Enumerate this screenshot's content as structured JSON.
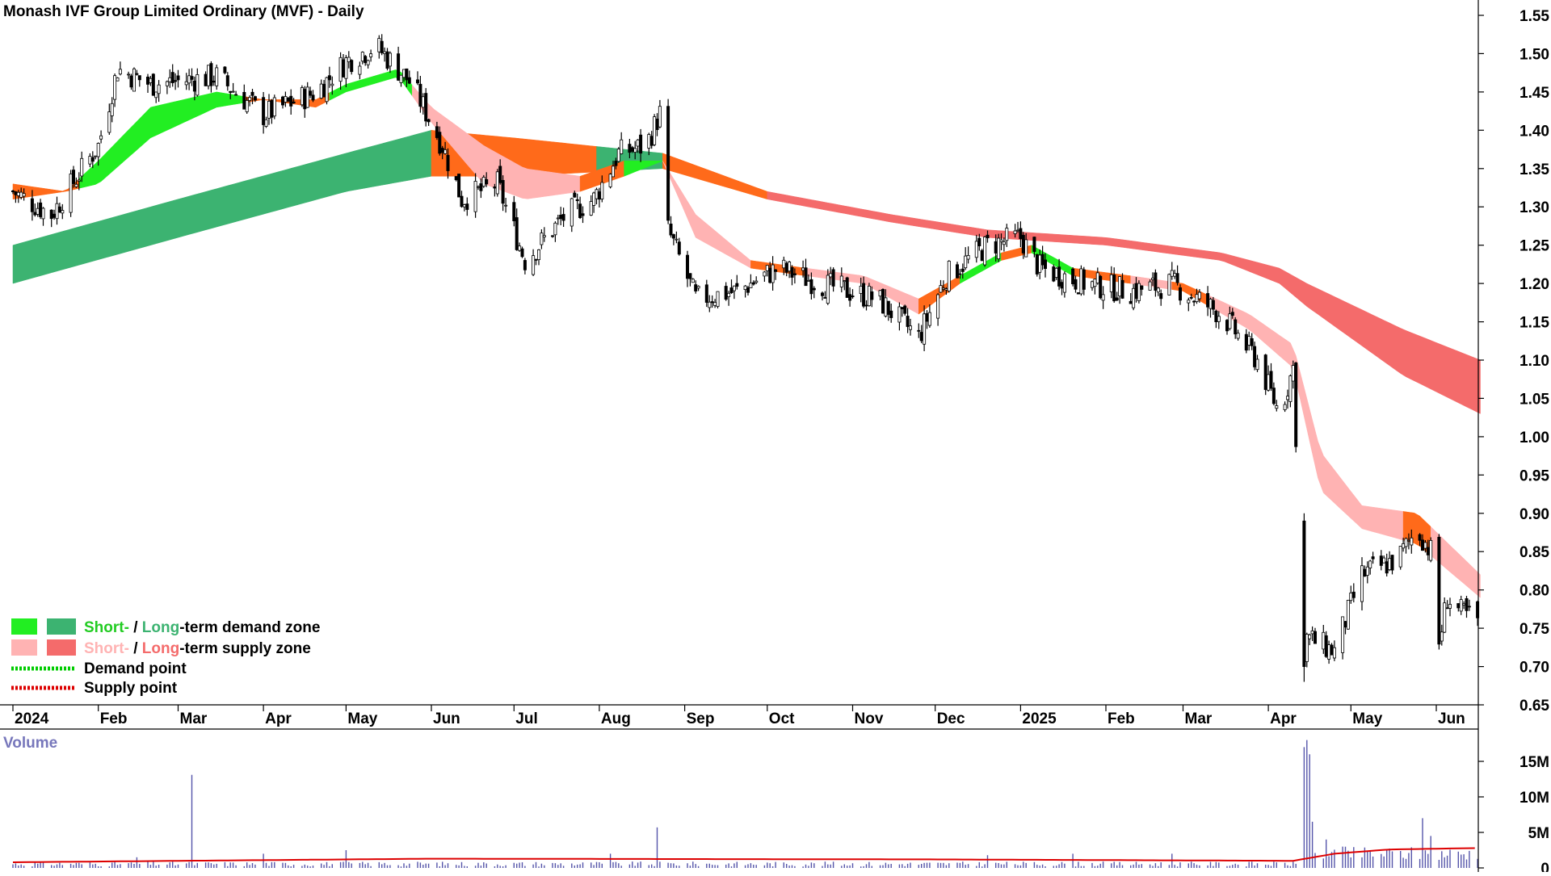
{
  "title": "Monash IVF Group Limited Ordinary (MVF) - Daily",
  "volume_label": "Volume",
  "legend": {
    "demand_short": "Short-",
    "demand_sep": " / ",
    "demand_long": "Long",
    "demand_rest": "-term demand zone",
    "supply_short": "Short-",
    "supply_sep": " / ",
    "supply_long": "Long",
    "supply_rest": "-term supply zone",
    "demand_point": "Demand point",
    "supply_point": "Supply point"
  },
  "colors": {
    "short_demand": "#22ee22",
    "long_demand": "#3cb371",
    "short_supply": "#ffb3b3",
    "long_supply": "#f46b6b",
    "crossover": "#ff6a1a",
    "candle": "#000000",
    "volume_bar": "#5555aa",
    "volume_avg": "#dd0000",
    "demand_point": "#00cc00",
    "supply_point": "#dd0000"
  },
  "chart_data": [
    {
      "type": "candlestick",
      "title": "Monash IVF Group Limited Ordinary (MVF) - Daily",
      "x_tick_labels": [
        "2024",
        "Feb",
        "Mar",
        "Apr",
        "May",
        "Jun",
        "Jul",
        "Aug",
        "Sep",
        "Oct",
        "Nov",
        "Dec",
        "2025",
        "Feb",
        "Mar",
        "Apr",
        "May",
        "Jun"
      ],
      "x_range": [
        "2024-01",
        "2025-06"
      ],
      "y_tick_labels": [
        "0.65",
        "0.70",
        "0.75",
        "0.80",
        "0.85",
        "0.90",
        "0.95",
        "1.00",
        "1.05",
        "1.10",
        "1.15",
        "1.20",
        "1.25",
        "1.30",
        "1.35",
        "1.40",
        "1.45",
        "1.50",
        "1.55"
      ],
      "ylim": [
        0.65,
        1.55
      ],
      "price_anchors": [
        [
          "2024-01-01",
          1.32
        ],
        [
          "2024-01-15",
          1.29
        ],
        [
          "2024-02-01",
          1.38
        ],
        [
          "2024-02-08",
          1.48
        ],
        [
          "2024-02-20",
          1.46
        ],
        [
          "2024-03-15",
          1.47
        ],
        [
          "2024-04-01",
          1.42
        ],
        [
          "2024-04-20",
          1.45
        ],
        [
          "2024-05-01",
          1.49
        ],
        [
          "2024-05-12",
          1.51
        ],
        [
          "2024-05-25",
          1.46
        ],
        [
          "2024-06-05",
          1.38
        ],
        [
          "2024-06-12",
          1.31
        ],
        [
          "2024-06-25",
          1.33
        ],
        [
          "2024-07-05",
          1.23
        ],
        [
          "2024-07-20",
          1.29
        ],
        [
          "2024-07-30",
          1.31
        ],
        [
          "2024-08-08",
          1.37
        ],
        [
          "2024-08-18",
          1.38
        ],
        [
          "2024-08-24",
          1.43
        ],
        [
          "2024-08-26",
          1.27
        ],
        [
          "2024-09-05",
          1.18
        ],
        [
          "2024-09-20",
          1.19
        ],
        [
          "2024-10-05",
          1.22
        ],
        [
          "2024-10-20",
          1.2
        ],
        [
          "2024-11-10",
          1.18
        ],
        [
          "2024-11-25",
          1.13
        ],
        [
          "2024-12-05",
          1.21
        ],
        [
          "2024-12-20",
          1.25
        ],
        [
          "2025-01-01",
          1.26
        ],
        [
          "2025-01-08",
          1.22
        ],
        [
          "2025-01-25",
          1.2
        ],
        [
          "2025-02-10",
          1.19
        ],
        [
          "2025-02-25",
          1.2
        ],
        [
          "2025-03-15",
          1.16
        ],
        [
          "2025-03-28",
          1.1
        ],
        [
          "2025-04-05",
          1.03
        ],
        [
          "2025-04-10",
          1.09
        ],
        [
          "2025-04-14",
          0.74
        ],
        [
          "2025-04-25",
          0.72
        ],
        [
          "2025-05-05",
          0.82
        ],
        [
          "2025-05-18",
          0.84
        ],
        [
          "2025-05-25",
          0.88
        ],
        [
          "2025-05-30",
          0.85
        ],
        [
          "2025-06-02",
          0.73
        ],
        [
          "2025-06-05",
          0.79
        ],
        [
          "2025-06-10",
          0.77
        ],
        [
          "2025-06-16",
          0.76
        ]
      ],
      "gap_down": {
        "date": "2025-04-14",
        "high": 0.9,
        "low": 0.68
      },
      "long_term_zone": {
        "dates": [
          "2024-01-01",
          "2024-03-01",
          "2024-05-01",
          "2024-06-01",
          "2024-07-01",
          "2024-08-24",
          "2024-10-01",
          "2024-11-15",
          "2024-12-20",
          "2025-02-01",
          "2025-03-15",
          "2025-04-05",
          "2025-04-15",
          "2025-05-20",
          "2025-06-17"
        ],
        "upper": [
          1.25,
          1.31,
          1.37,
          1.4,
          1.39,
          1.37,
          1.32,
          1.29,
          1.27,
          1.26,
          1.24,
          1.22,
          1.2,
          1.14,
          1.1
        ],
        "lower": [
          1.2,
          1.26,
          1.32,
          1.34,
          1.34,
          1.35,
          1.31,
          1.28,
          1.26,
          1.25,
          1.23,
          1.2,
          1.17,
          1.08,
          1.03
        ],
        "phases": [
          {
            "from": "2024-01-01",
            "to": "2024-06-01",
            "state": "demand"
          },
          {
            "from": "2024-06-01",
            "to": "2024-07-31",
            "state": "crossover"
          },
          {
            "from": "2024-07-31",
            "to": "2024-08-24",
            "state": "demand"
          },
          {
            "from": "2024-08-24",
            "to": "2024-10-01",
            "state": "crossover"
          },
          {
            "from": "2024-10-01",
            "to": "2025-06-17",
            "state": "supply"
          }
        ]
      },
      "short_term_zone": {
        "dates": [
          "2024-01-01",
          "2024-01-20",
          "2024-02-01",
          "2024-02-20",
          "2024-03-15",
          "2024-04-01",
          "2024-04-20",
          "2024-05-01",
          "2024-05-20",
          "2024-06-01",
          "2024-06-20",
          "2024-07-05",
          "2024-07-25",
          "2024-08-10",
          "2024-08-24",
          "2024-09-05",
          "2024-09-25",
          "2024-10-15",
          "2024-11-05",
          "2024-11-25",
          "2024-12-10",
          "2024-12-25",
          "2025-01-05",
          "2025-01-20",
          "2025-02-10",
          "2025-03-01",
          "2025-03-25",
          "2025-04-10",
          "2025-04-20",
          "2025-05-05",
          "2025-05-25",
          "2025-06-17"
        ],
        "upper": [
          1.33,
          1.32,
          1.36,
          1.43,
          1.45,
          1.44,
          1.44,
          1.46,
          1.48,
          1.43,
          1.38,
          1.35,
          1.34,
          1.36,
          1.36,
          1.29,
          1.23,
          1.22,
          1.21,
          1.18,
          1.21,
          1.24,
          1.25,
          1.22,
          1.21,
          1.2,
          1.16,
          1.12,
          0.98,
          0.91,
          0.9,
          0.82
        ],
        "lower": [
          1.31,
          1.32,
          1.33,
          1.39,
          1.43,
          1.44,
          1.43,
          1.45,
          1.47,
          1.41,
          1.33,
          1.31,
          1.32,
          1.34,
          1.36,
          1.26,
          1.22,
          1.21,
          1.2,
          1.16,
          1.2,
          1.23,
          1.24,
          1.21,
          1.2,
          1.19,
          1.14,
          1.09,
          0.93,
          0.88,
          0.86,
          0.79
        ],
        "phases": [
          {
            "from": "2024-01-01",
            "to": "2024-01-25",
            "state": "crossover"
          },
          {
            "from": "2024-01-25",
            "to": "2024-03-25",
            "state": "demand"
          },
          {
            "from": "2024-03-25",
            "to": "2024-04-25",
            "state": "crossover"
          },
          {
            "from": "2024-04-25",
            "to": "2024-05-25",
            "state": "demand"
          },
          {
            "from": "2024-05-25",
            "to": "2024-07-25",
            "state": "supply"
          },
          {
            "from": "2024-07-25",
            "to": "2024-08-10",
            "state": "crossover"
          },
          {
            "from": "2024-08-10",
            "to": "2024-08-24",
            "state": "demand"
          },
          {
            "from": "2024-08-24",
            "to": "2024-09-25",
            "state": "supply"
          },
          {
            "from": "2024-09-25",
            "to": "2024-10-15",
            "state": "crossover"
          },
          {
            "from": "2024-10-15",
            "to": "2024-11-25",
            "state": "supply"
          },
          {
            "from": "2024-11-25",
            "to": "2024-12-10",
            "state": "crossover"
          },
          {
            "from": "2024-12-10",
            "to": "2024-12-25",
            "state": "demand"
          },
          {
            "from": "2024-12-25",
            "to": "2025-01-05",
            "state": "crossover"
          },
          {
            "from": "2025-01-05",
            "to": "2025-01-20",
            "state": "demand"
          },
          {
            "from": "2025-01-20",
            "to": "2025-02-10",
            "state": "crossover"
          },
          {
            "from": "2025-02-10",
            "to": "2025-02-25",
            "state": "supply"
          },
          {
            "from": "2025-02-25",
            "to": "2025-03-10",
            "state": "crossover"
          },
          {
            "from": "2025-03-10",
            "to": "2025-05-20",
            "state": "supply"
          },
          {
            "from": "2025-05-20",
            "to": "2025-05-30",
            "state": "crossover"
          },
          {
            "from": "2025-05-30",
            "to": "2025-06-17",
            "state": "supply"
          }
        ]
      }
    },
    {
      "type": "bar",
      "title": "Volume",
      "y_tick_labels": [
        "0",
        "5M",
        "10M",
        "15M"
      ],
      "ylim": [
        0,
        17
      ],
      "unit": "M",
      "spikes": [
        [
          "2024-03-06",
          13.1
        ],
        [
          "2024-02-15",
          1.5
        ],
        [
          "2024-02-25",
          3.0
        ],
        [
          "2024-04-01",
          2.0
        ],
        [
          "2024-05-01",
          2.5
        ],
        [
          "2024-06-15",
          2.0
        ],
        [
          "2024-08-22",
          5.7
        ],
        [
          "2024-08-05",
          2.0
        ],
        [
          "2024-12-20",
          1.8
        ],
        [
          "2025-01-20",
          2.0
        ],
        [
          "2025-02-25",
          2.0
        ],
        [
          "2025-04-14",
          17.0
        ],
        [
          "2025-04-15",
          18.0
        ],
        [
          "2025-04-16",
          16.0
        ],
        [
          "2025-04-17",
          6.5
        ],
        [
          "2025-04-22",
          4.0
        ],
        [
          "2025-04-28",
          3.0
        ],
        [
          "2025-05-27",
          7.0
        ],
        [
          "2025-05-30",
          4.5
        ]
      ],
      "average_line": [
        [
          "2024-01-01",
          0.8
        ],
        [
          "2024-06-01",
          1.3
        ],
        [
          "2024-12-01",
          1.2
        ],
        [
          "2025-04-10",
          1.0
        ],
        [
          "2025-04-25",
          2.0
        ],
        [
          "2025-05-15",
          2.6
        ],
        [
          "2025-06-17",
          2.8
        ]
      ]
    }
  ]
}
